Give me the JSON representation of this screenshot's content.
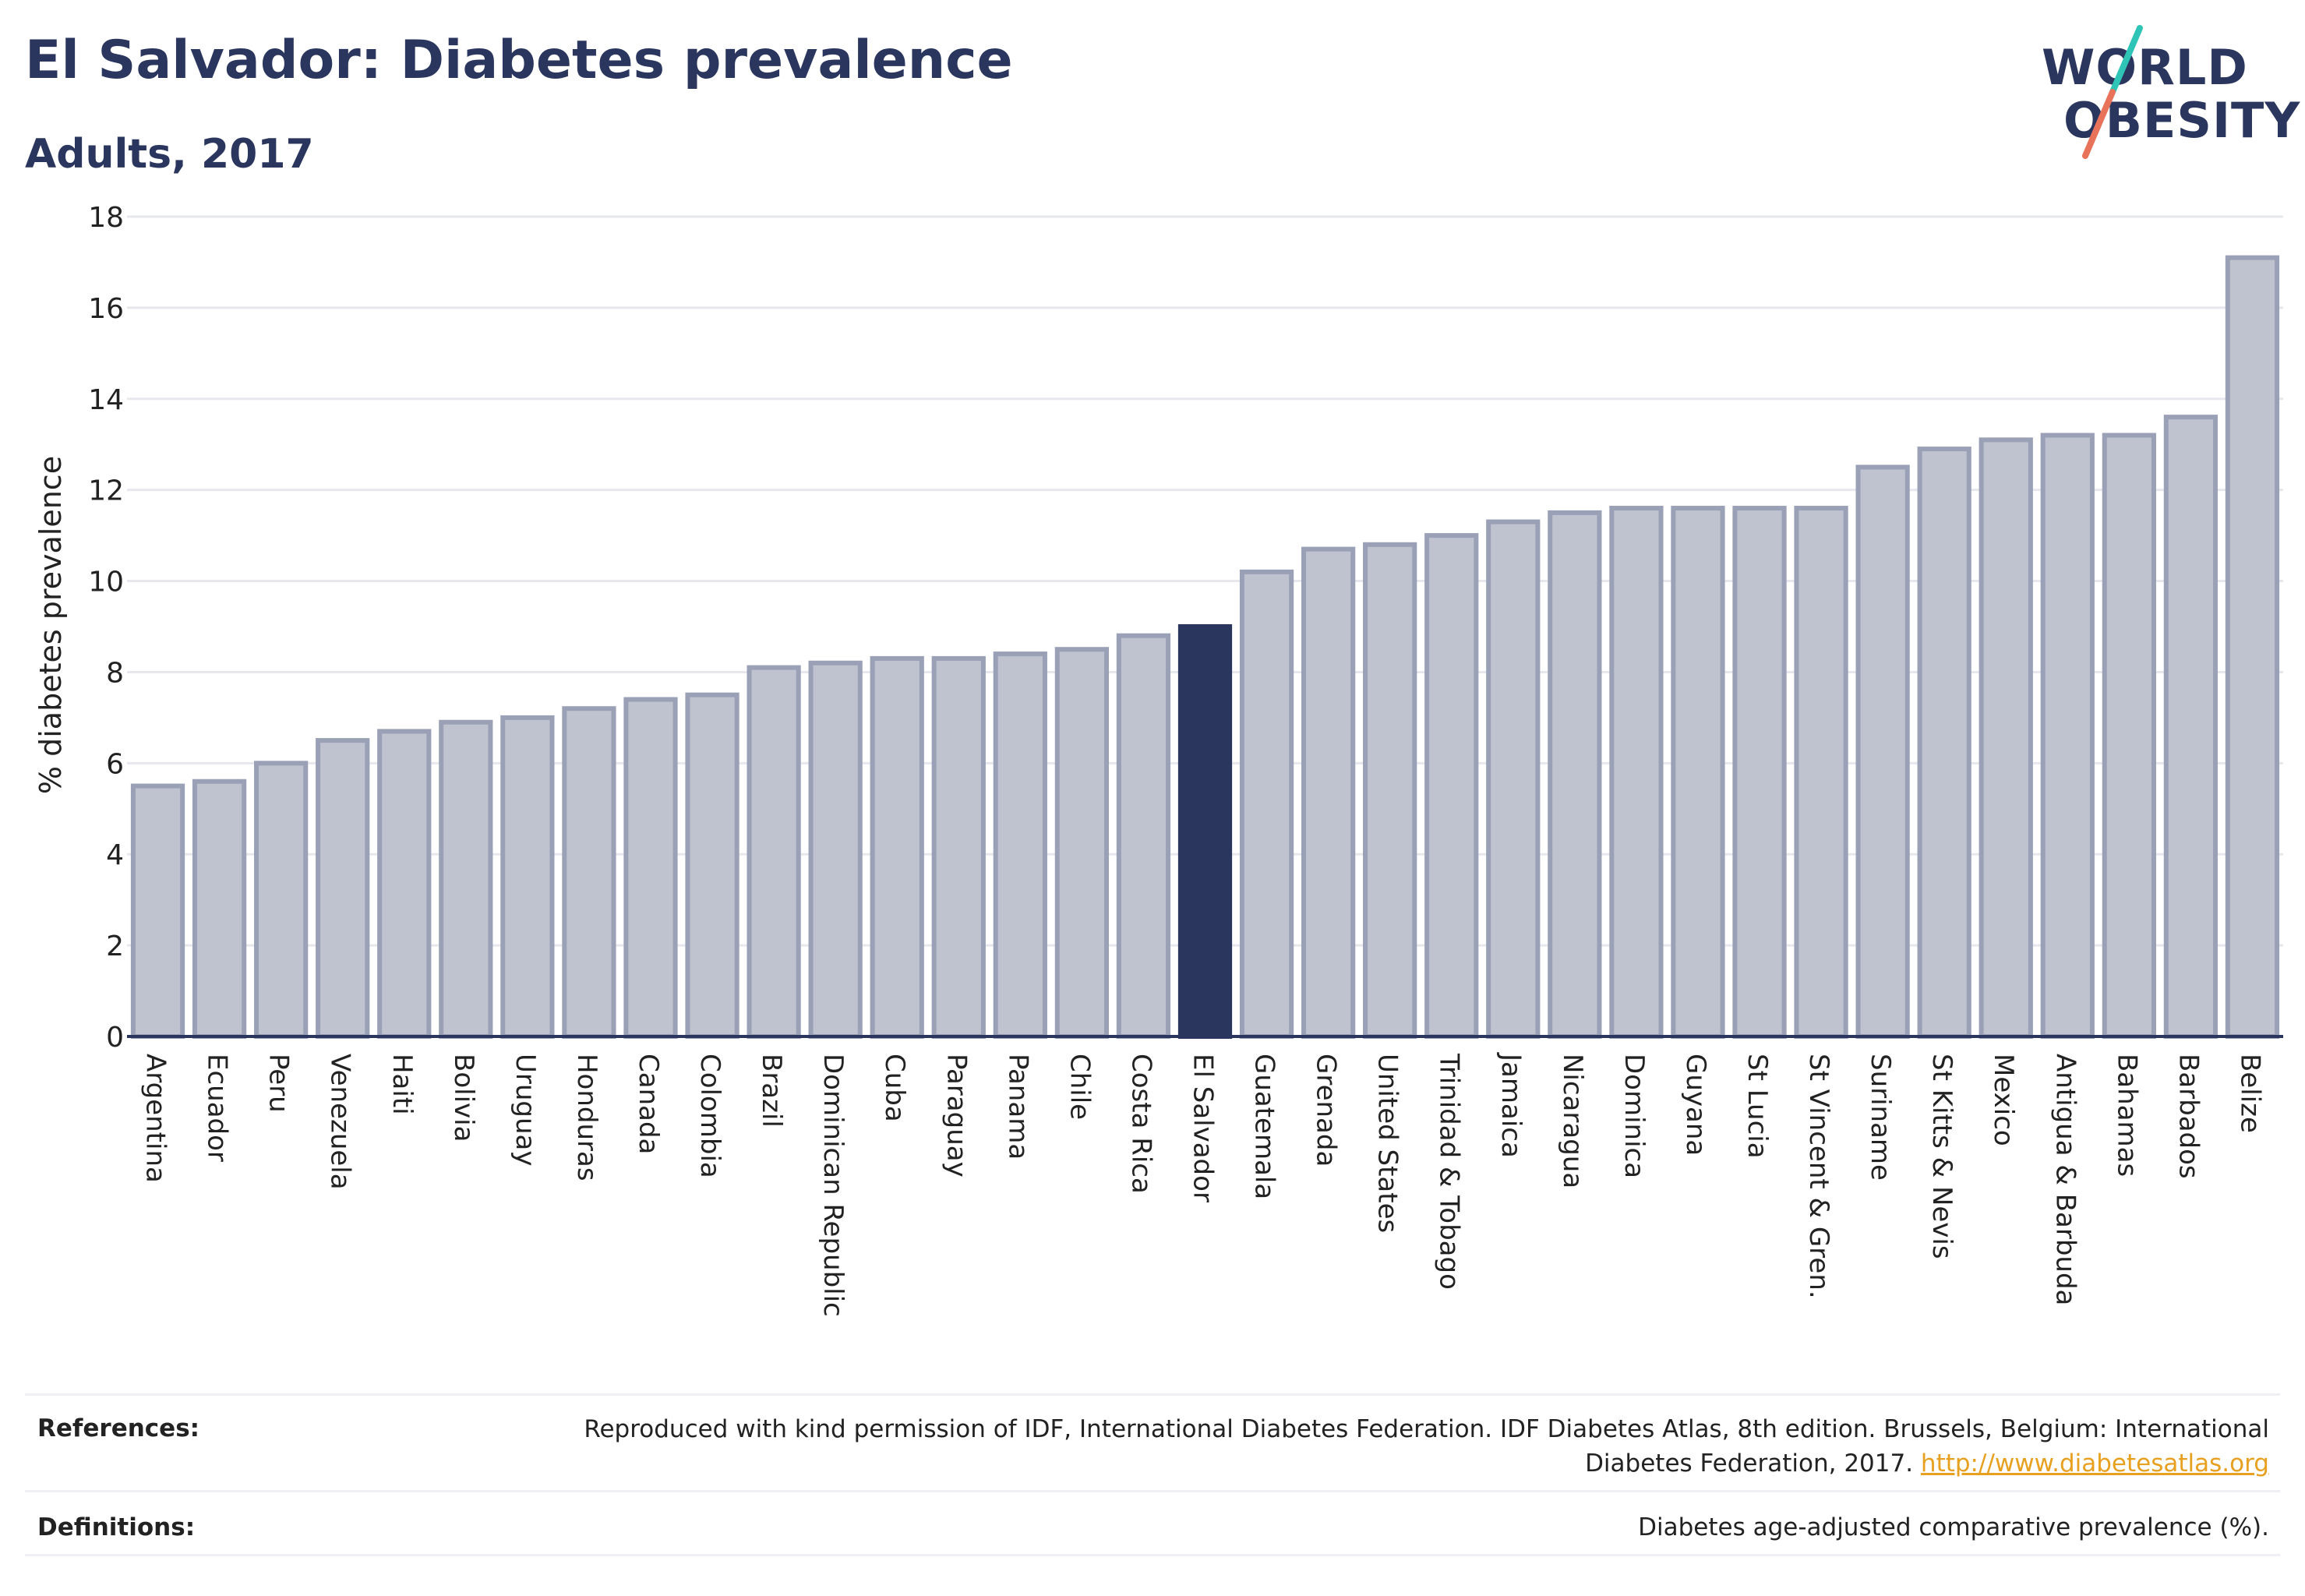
{
  "header": {
    "title": "El Salvador: Diabetes prevalence",
    "subtitle": "Adults, 2017"
  },
  "logo": {
    "line1": "WORLD",
    "line2": "OBESITY",
    "colors": {
      "text": "#2b365e",
      "slash_top": "#2ec4b6",
      "slash_bottom": "#e8735a"
    }
  },
  "chart_data": {
    "type": "bar",
    "title": "El Salvador: Diabetes prevalence",
    "subtitle": "Adults, 2017",
    "ylabel": "% diabetes prevalence",
    "xlabel": "",
    "ylim": [
      0,
      18
    ],
    "yticks": [
      0,
      2,
      4,
      6,
      8,
      10,
      12,
      14,
      16,
      18
    ],
    "grid": true,
    "highlight": "El Salvador",
    "colors": {
      "bar": "#bfc2cf",
      "bar_border": "#9aa0b6",
      "highlight": "#2b365e",
      "grid": "#e6e8ee",
      "axis": "#2b365e"
    },
    "categories": [
      "Argentina",
      "Ecuador",
      "Peru",
      "Venezuela",
      "Haiti",
      "Bolivia",
      "Uruguay",
      "Honduras",
      "Canada",
      "Colombia",
      "Brazil",
      "Dominican Republic",
      "Cuba",
      "Paraguay",
      "Panama",
      "Chile",
      "Costa Rica",
      "El Salvador",
      "Guatemala",
      "Grenada",
      "United States",
      "Trinidad & Tobago",
      "Jamaica",
      "Nicaragua",
      "Dominica",
      "Guyana",
      "St Lucia",
      "St Vincent & Gren.",
      "Suriname",
      "St Kitts & Nevis",
      "Mexico",
      "Antigua & Barbuda",
      "Bahamas",
      "Barbados",
      "Belize"
    ],
    "values": [
      5.5,
      5.6,
      6.0,
      6.5,
      6.7,
      6.9,
      7.0,
      7.2,
      7.4,
      7.5,
      8.1,
      8.2,
      8.3,
      8.3,
      8.4,
      8.5,
      8.8,
      9.0,
      10.2,
      10.7,
      10.8,
      11.0,
      11.3,
      11.5,
      11.6,
      11.6,
      11.6,
      11.6,
      12.5,
      12.9,
      13.1,
      13.2,
      13.2,
      13.6,
      17.1
    ]
  },
  "references": {
    "label": "References:",
    "text": "Reproduced with kind permission of IDF, International Diabetes Federation. IDF Diabetes Atlas, 8th edition. Brussels, Belgium: International Diabetes Federation, 2017.",
    "link": "http://www.diabetesatlas.org"
  },
  "definitions": {
    "label": "Definitions:",
    "text": "Diabetes age-adjusted comparative prevalence (%)."
  }
}
